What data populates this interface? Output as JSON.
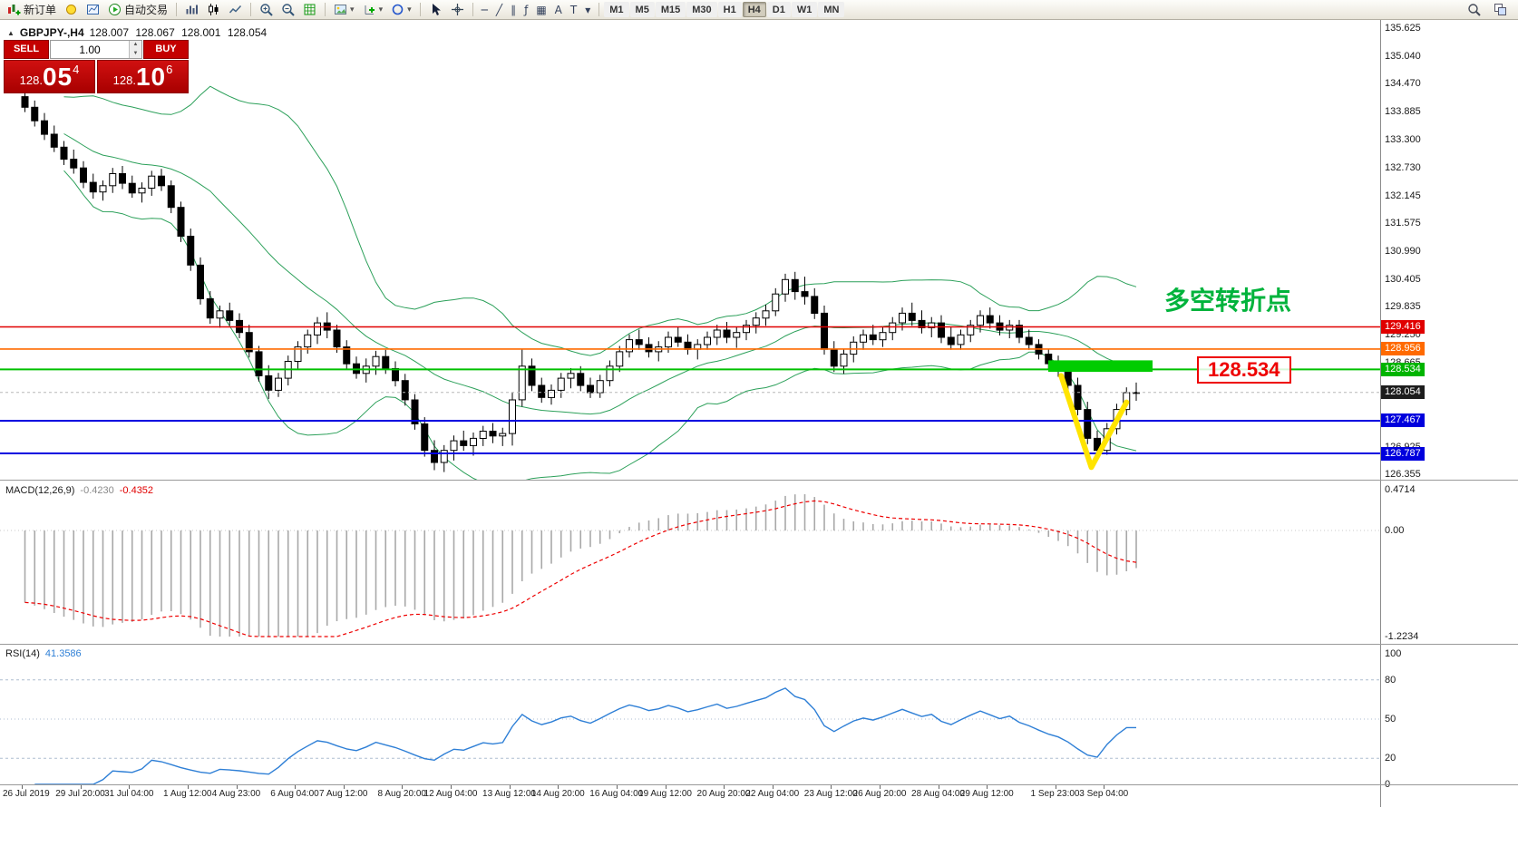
{
  "toolbar": {
    "new_order_label": "新订单",
    "auto_trading_label": "自动交易",
    "timeframes": [
      "M1",
      "M5",
      "M15",
      "M30",
      "H1",
      "H4",
      "D1",
      "W1",
      "MN"
    ],
    "active_timeframe": "H4",
    "drawing_tools": {
      "hline": "─",
      "trendline": "╱",
      "channel": "∥",
      "fibonacci": "ƒ",
      "shapes": "▦",
      "text": "A",
      "label": "T",
      "arrows": "▾"
    },
    "icons": {
      "new_order": "candles-plus",
      "alerts": "bulb",
      "chart_window": "mini-chart",
      "auto_trading": "play-circle",
      "bar_chart": "bars",
      "candle_chart": "candles",
      "line_chart": "zigzag",
      "zoom_in": "magnifier-plus",
      "zoom_out": "magnifier-minus",
      "indicator_list": "green-grid",
      "template": "picture",
      "add_indicator": "plus-axes",
      "objects": "blue-circle",
      "cursor": "arrow",
      "crosshair": "cross-circle",
      "search": "magnifier",
      "window_tile": "windows"
    }
  },
  "symbol_header": {
    "name": "GBPJPY-,H4",
    "open": "128.007",
    "high": "128.067",
    "low": "128.001",
    "close": "128.054"
  },
  "trade_panel": {
    "sell_label": "SELL",
    "buy_label": "BUY",
    "volume": "1.00",
    "sell_price": {
      "prefix": "128.",
      "big": "05",
      "sup": "4"
    },
    "buy_price": {
      "prefix": "128.",
      "big": "10",
      "sup": "6"
    }
  },
  "annotations": {
    "turning_point": {
      "text": "多空转折点",
      "color": "#00b33c"
    },
    "level_callout": {
      "text": "128.534",
      "color": "#ee0000"
    }
  },
  "chart_data": {
    "type": "candlestick",
    "title": "GBPJPY-,H4",
    "price_axis_labels": [
      135.625,
      135.04,
      134.47,
      133.885,
      133.3,
      132.73,
      132.145,
      131.575,
      130.99,
      130.405,
      129.835,
      129.25,
      128.665,
      126.925,
      126.355
    ],
    "price_tags": [
      {
        "value": 129.416,
        "color": "#e00000"
      },
      {
        "value": 128.956,
        "color": "#ff6a00"
      },
      {
        "value": 128.534,
        "color": "#00b400"
      },
      {
        "value": 128.054,
        "color": "#1d1d1d"
      },
      {
        "value": 127.467,
        "color": "#0000dd"
      },
      {
        "value": 126.787,
        "color": "#0000dd"
      }
    ],
    "hlines": [
      {
        "price": 129.416,
        "color": "#e00000",
        "width": 1.4
      },
      {
        "price": 128.956,
        "color": "#ff6a00",
        "width": 1.6
      },
      {
        "price": 128.534,
        "color": "#00c000",
        "width": 2
      },
      {
        "price": 128.054,
        "color": "#b8b8b8",
        "width": 1,
        "dash": "3 3"
      },
      {
        "price": 127.467,
        "color": "#0000e0",
        "width": 2
      },
      {
        "price": 126.787,
        "color": "#0000e0",
        "width": 2
      }
    ],
    "bollinger": {
      "period": 20,
      "deviations": 2,
      "color": "#2ca05a"
    },
    "green_box": {
      "start_index": 105.3,
      "end_index": 116,
      "price_top": 128.72,
      "price_bottom": 128.48,
      "color": "#00cc00"
    },
    "yellow_mark": {
      "points": [
        [
          106.3,
          128.4
        ],
        [
          109.4,
          126.5
        ],
        [
          113.0,
          127.85
        ]
      ],
      "color": "#ffe400",
      "width": 6
    },
    "candles": [
      [
        134.2,
        134.38,
        133.88,
        133.98
      ],
      [
        133.98,
        134.12,
        133.58,
        133.7
      ],
      [
        133.7,
        133.86,
        133.3,
        133.42
      ],
      [
        133.42,
        133.6,
        133.05,
        133.15
      ],
      [
        133.15,
        133.28,
        132.78,
        132.9
      ],
      [
        132.9,
        133.1,
        132.6,
        132.72
      ],
      [
        132.72,
        132.86,
        132.3,
        132.42
      ],
      [
        132.42,
        132.6,
        132.08,
        132.22
      ],
      [
        132.22,
        132.46,
        132.04,
        132.35
      ],
      [
        132.35,
        132.72,
        132.2,
        132.6
      ],
      [
        132.6,
        132.76,
        132.28,
        132.4
      ],
      [
        132.4,
        132.56,
        132.1,
        132.2
      ],
      [
        132.2,
        132.42,
        132.0,
        132.3
      ],
      [
        132.3,
        132.66,
        132.14,
        132.55
      ],
      [
        132.55,
        132.7,
        132.24,
        132.35
      ],
      [
        132.35,
        132.46,
        131.78,
        131.9
      ],
      [
        131.9,
        132.02,
        131.18,
        131.3
      ],
      [
        131.3,
        131.46,
        130.58,
        130.7
      ],
      [
        130.7,
        130.86,
        129.88,
        130.0
      ],
      [
        130.0,
        130.16,
        129.48,
        129.6
      ],
      [
        129.6,
        129.86,
        129.4,
        129.75
      ],
      [
        129.75,
        129.92,
        129.44,
        129.55
      ],
      [
        129.55,
        129.7,
        129.18,
        129.3
      ],
      [
        129.3,
        129.46,
        128.78,
        128.9
      ],
      [
        128.9,
        129.02,
        128.28,
        128.4
      ],
      [
        128.4,
        128.62,
        127.92,
        128.1
      ],
      [
        128.1,
        128.46,
        127.96,
        128.35
      ],
      [
        128.35,
        128.82,
        128.2,
        128.7
      ],
      [
        128.7,
        129.12,
        128.54,
        129.0
      ],
      [
        129.0,
        129.36,
        128.86,
        129.25
      ],
      [
        129.25,
        129.62,
        129.06,
        129.5
      ],
      [
        129.5,
        129.72,
        129.18,
        129.35
      ],
      [
        129.35,
        129.46,
        128.88,
        129.0
      ],
      [
        129.0,
        129.14,
        128.54,
        128.65
      ],
      [
        128.65,
        128.8,
        128.34,
        128.45
      ],
      [
        128.45,
        128.76,
        128.26,
        128.6
      ],
      [
        128.6,
        128.92,
        128.42,
        128.8
      ],
      [
        128.8,
        128.94,
        128.44,
        128.55
      ],
      [
        128.55,
        128.7,
        128.18,
        128.3
      ],
      [
        128.3,
        128.44,
        127.78,
        127.9
      ],
      [
        127.9,
        128.02,
        127.28,
        127.4
      ],
      [
        127.4,
        127.54,
        126.72,
        126.85
      ],
      [
        126.85,
        127.06,
        126.44,
        126.6
      ],
      [
        126.6,
        126.96,
        126.4,
        126.85
      ],
      [
        126.85,
        127.16,
        126.64,
        127.05
      ],
      [
        127.05,
        127.26,
        126.84,
        126.95
      ],
      [
        126.95,
        127.22,
        126.74,
        127.1
      ],
      [
        127.1,
        127.36,
        126.94,
        127.25
      ],
      [
        127.25,
        127.42,
        127.0,
        127.15
      ],
      [
        127.15,
        127.32,
        126.94,
        127.2
      ],
      [
        127.2,
        128.06,
        126.95,
        127.9
      ],
      [
        127.9,
        128.96,
        127.76,
        128.6
      ],
      [
        128.6,
        128.76,
        128.08,
        128.2
      ],
      [
        128.2,
        128.36,
        127.84,
        127.95
      ],
      [
        127.95,
        128.22,
        127.8,
        128.1
      ],
      [
        128.1,
        128.46,
        127.94,
        128.35
      ],
      [
        128.35,
        128.56,
        128.14,
        128.45
      ],
      [
        128.45,
        128.6,
        128.08,
        128.2
      ],
      [
        128.2,
        128.36,
        127.94,
        128.05
      ],
      [
        128.05,
        128.42,
        127.94,
        128.3
      ],
      [
        128.3,
        128.72,
        128.18,
        128.6
      ],
      [
        128.6,
        129.02,
        128.48,
        128.9
      ],
      [
        128.9,
        129.26,
        128.78,
        129.15
      ],
      [
        129.15,
        129.36,
        128.94,
        129.05
      ],
      [
        129.05,
        129.2,
        128.78,
        128.9
      ],
      [
        128.9,
        129.12,
        128.7,
        129.0
      ],
      [
        129.0,
        129.32,
        128.88,
        129.2
      ],
      [
        129.2,
        129.42,
        129.0,
        129.1
      ],
      [
        129.1,
        129.26,
        128.84,
        128.95
      ],
      [
        128.95,
        129.16,
        128.74,
        129.05
      ],
      [
        129.05,
        129.32,
        128.94,
        129.2
      ],
      [
        129.2,
        129.46,
        129.04,
        129.35
      ],
      [
        129.35,
        129.52,
        129.08,
        129.2
      ],
      [
        129.2,
        129.42,
        128.98,
        129.3
      ],
      [
        129.3,
        129.56,
        129.14,
        129.45
      ],
      [
        129.45,
        129.72,
        129.28,
        129.6
      ],
      [
        129.6,
        129.88,
        129.44,
        129.75
      ],
      [
        129.75,
        130.22,
        129.64,
        130.1
      ],
      [
        130.1,
        130.52,
        129.94,
        130.4
      ],
      [
        130.4,
        130.56,
        129.98,
        130.15
      ],
      [
        130.15,
        130.46,
        129.88,
        130.05
      ],
      [
        130.05,
        130.22,
        129.58,
        129.7
      ],
      [
        129.7,
        129.86,
        128.84,
        128.95
      ],
      [
        128.95,
        129.12,
        128.48,
        128.6
      ],
      [
        128.6,
        128.96,
        128.44,
        128.85
      ],
      [
        128.85,
        129.22,
        128.68,
        129.1
      ],
      [
        129.1,
        129.36,
        128.94,
        129.25
      ],
      [
        129.25,
        129.46,
        129.04,
        129.15
      ],
      [
        129.15,
        129.42,
        129.0,
        129.3
      ],
      [
        129.3,
        129.62,
        129.14,
        129.5
      ],
      [
        129.5,
        129.82,
        129.34,
        129.7
      ],
      [
        129.7,
        129.92,
        129.44,
        129.55
      ],
      [
        129.55,
        129.76,
        129.28,
        129.4
      ],
      [
        129.4,
        129.62,
        129.2,
        129.5
      ],
      [
        129.5,
        129.66,
        129.08,
        129.2
      ],
      [
        129.2,
        129.42,
        128.94,
        129.05
      ],
      [
        129.05,
        129.36,
        128.94,
        129.25
      ],
      [
        129.25,
        129.56,
        129.1,
        129.45
      ],
      [
        129.45,
        129.76,
        129.3,
        129.65
      ],
      [
        129.65,
        129.82,
        129.38,
        129.5
      ],
      [
        129.5,
        129.66,
        129.24,
        129.35
      ],
      [
        129.35,
        129.56,
        129.18,
        129.45
      ],
      [
        129.45,
        129.56,
        129.08,
        129.2
      ],
      [
        129.2,
        129.36,
        128.94,
        129.05
      ],
      [
        129.05,
        129.16,
        128.74,
        128.85
      ],
      [
        128.85,
        128.96,
        128.54,
        128.65
      ],
      [
        128.65,
        128.82,
        128.38,
        128.5
      ],
      [
        128.5,
        128.62,
        128.08,
        128.2
      ],
      [
        128.2,
        128.36,
        127.58,
        127.7
      ],
      [
        127.7,
        127.86,
        126.98,
        127.1
      ],
      [
        127.1,
        127.26,
        126.74,
        126.85
      ],
      [
        126.85,
        127.42,
        126.76,
        127.3
      ],
      [
        127.3,
        127.82,
        127.18,
        127.7
      ],
      [
        127.7,
        128.16,
        127.58,
        128.05
      ],
      [
        128.05,
        128.26,
        127.88,
        128.054
      ]
    ],
    "time_labels": [
      [
        "26 Jul 2019",
        0
      ],
      [
        "29 Jul 20:00",
        6
      ],
      [
        "31 Jul 04:00",
        11
      ],
      [
        "1 Aug 12:00",
        17
      ],
      [
        "4 Aug 23:00",
        22
      ],
      [
        "6 Aug 04:00",
        28
      ],
      [
        "7 Aug 12:00",
        33
      ],
      [
        "8 Aug 20:00",
        39
      ],
      [
        "12 Aug 04:00",
        44
      ],
      [
        "13 Aug 12:00",
        50
      ],
      [
        "14 Aug 20:00",
        55
      ],
      [
        "16 Aug 04:00",
        61
      ],
      [
        "19 Aug 12:00",
        66
      ],
      [
        "20 Aug 20:00",
        72
      ],
      [
        "22 Aug 04:00",
        77
      ],
      [
        "23 Aug 12:00",
        83
      ],
      [
        "26 Aug 20:00",
        88
      ],
      [
        "28 Aug 04:00",
        94
      ],
      [
        "29 Aug 12:00",
        99
      ],
      [
        "1 Sep 23:00",
        106
      ],
      [
        "3 Sep 04:00",
        111
      ]
    ],
    "macd": {
      "label": "MACD(12,26,9)",
      "value": "-0.4230",
      "signal": "-0.4352",
      "axis_labels": [
        "0.4714",
        "0.00",
        "-1.2234"
      ],
      "max": 0.4714,
      "min": -1.2234
    },
    "rsi": {
      "label": "RSI(14)",
      "value": "41.3586",
      "axis_labels": [
        100,
        80,
        50,
        20,
        0
      ],
      "levels": [
        80,
        50,
        20
      ]
    }
  }
}
